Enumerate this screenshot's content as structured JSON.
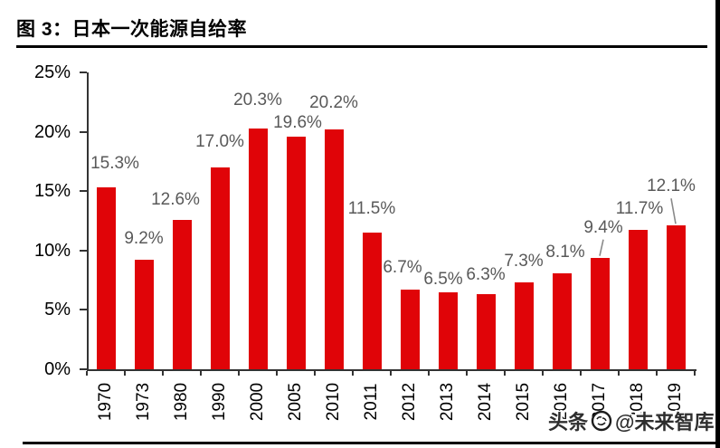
{
  "header": {
    "title": "图 3：日本一次能源自给率"
  },
  "watermark": {
    "prefix": "头条",
    "logo": "zhiku-logo-icon",
    "suffix": "@未来智库"
  },
  "chart_data": {
    "type": "bar",
    "title": "日本一次能源自给率",
    "categories": [
      "1970",
      "1973",
      "1980",
      "1990",
      "2000",
      "2005",
      "2010",
      "2011",
      "2012",
      "2013",
      "2014",
      "2015",
      "2016",
      "2017",
      "2018",
      "2019"
    ],
    "values": [
      15.3,
      9.2,
      12.6,
      17.0,
      20.3,
      19.6,
      20.2,
      11.5,
      6.7,
      6.5,
      6.3,
      7.3,
      8.1,
      9.4,
      11.7,
      12.1
    ],
    "value_labels": [
      "15.3%",
      "9.2%",
      "12.6%",
      "17.0%",
      "20.3%",
      "19.6%",
      "20.2%",
      "11.5%",
      "6.7%",
      "6.5%",
      "6.3%",
      "7.3%",
      "8.1%",
      "9.4%",
      "11.7%",
      "12.1%"
    ],
    "xlabel": "",
    "ylabel": "",
    "ylim": [
      0,
      25
    ],
    "yticks": [
      "0%",
      "5%",
      "10%",
      "15%",
      "20%",
      "25%"
    ],
    "grid": false,
    "legend": false,
    "bar_color": "#e00408",
    "value_label_color": "#595959",
    "axis_color": "#333333",
    "leader_line_color": "#8a8a8a",
    "label_layout": {
      "dx": [
        10,
        0,
        -7,
        0,
        0,
        2,
        0,
        0,
        -8,
        -5,
        0,
        0,
        4,
        4,
        2,
        -5
      ],
      "gap": [
        15,
        12,
        11,
        17,
        20,
        4,
        18,
        15,
        13,
        3,
        10,
        12,
        12,
        22,
        12,
        32
      ],
      "leader": [
        false,
        false,
        false,
        false,
        false,
        false,
        false,
        false,
        false,
        false,
        false,
        false,
        false,
        true,
        false,
        true
      ]
    }
  }
}
